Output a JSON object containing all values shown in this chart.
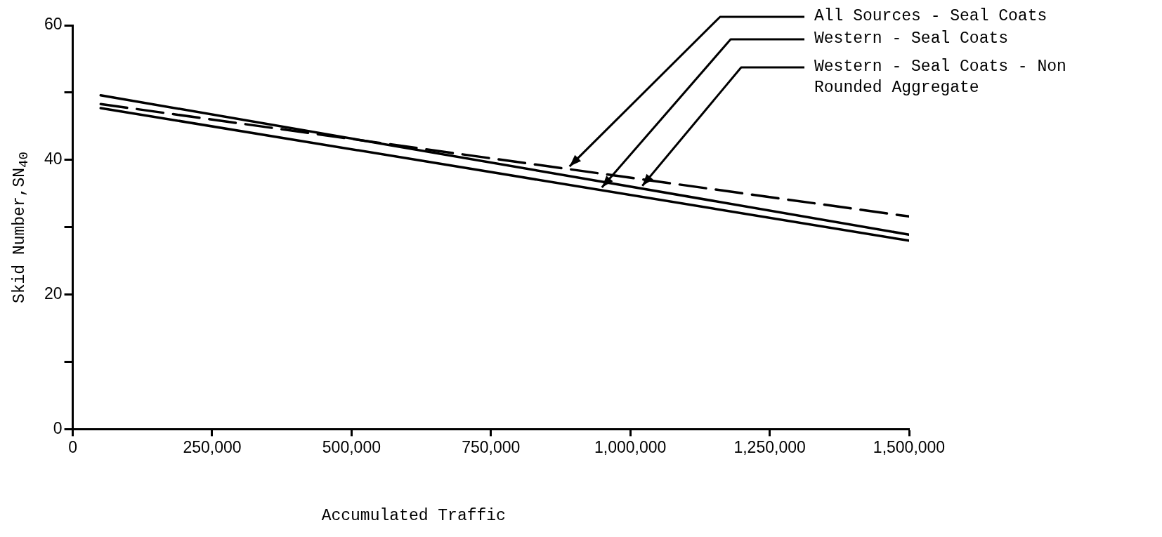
{
  "chart_data": {
    "type": "line",
    "xlabel": "Accumulated Traffic",
    "ylabel": "Skid Number,SN$_{40}$",
    "x": [
      50000,
      1500000
    ],
    "series": [
      {
        "name": "All Sources - Seal Coats",
        "color": "#000000",
        "values": [
          48.3,
          31.6
        ],
        "line_style": "dashed"
      },
      {
        "name": "Western - Seal Coats",
        "color": "#000000",
        "values": [
          47.7,
          28.0
        ],
        "line_style": "solid"
      },
      {
        "name": "Western - Seal Coats - Non Rounded Aggregate",
        "color": "#000000",
        "values": [
          49.6,
          28.9
        ],
        "line_style": "solid"
      }
    ],
    "xlim": [
      0,
      1500000
    ],
    "xticks": [
      0,
      {
        "value": 250000,
        "label": "250,000"
      },
      {
        "value": 500000,
        "label": "500,000"
      },
      {
        "value": 750000,
        "label": "750,000"
      },
      {
        "value": 1000000,
        "label": "1,000,000"
      },
      {
        "value": 1250000,
        "label": "1,250,000"
      },
      {
        "value": 1500000,
        "label": "1,500,000"
      }
    ],
    "ylim": [
      0,
      60
    ],
    "yticks": [
      0,
      {
        "value": 10,
        "label": null
      },
      20,
      {
        "value": 30,
        "label": null
      },
      40,
      {
        "value": 50,
        "label": null
      },
      60
    ],
    "legend": "top right",
    "marker": "none"
  }
}
